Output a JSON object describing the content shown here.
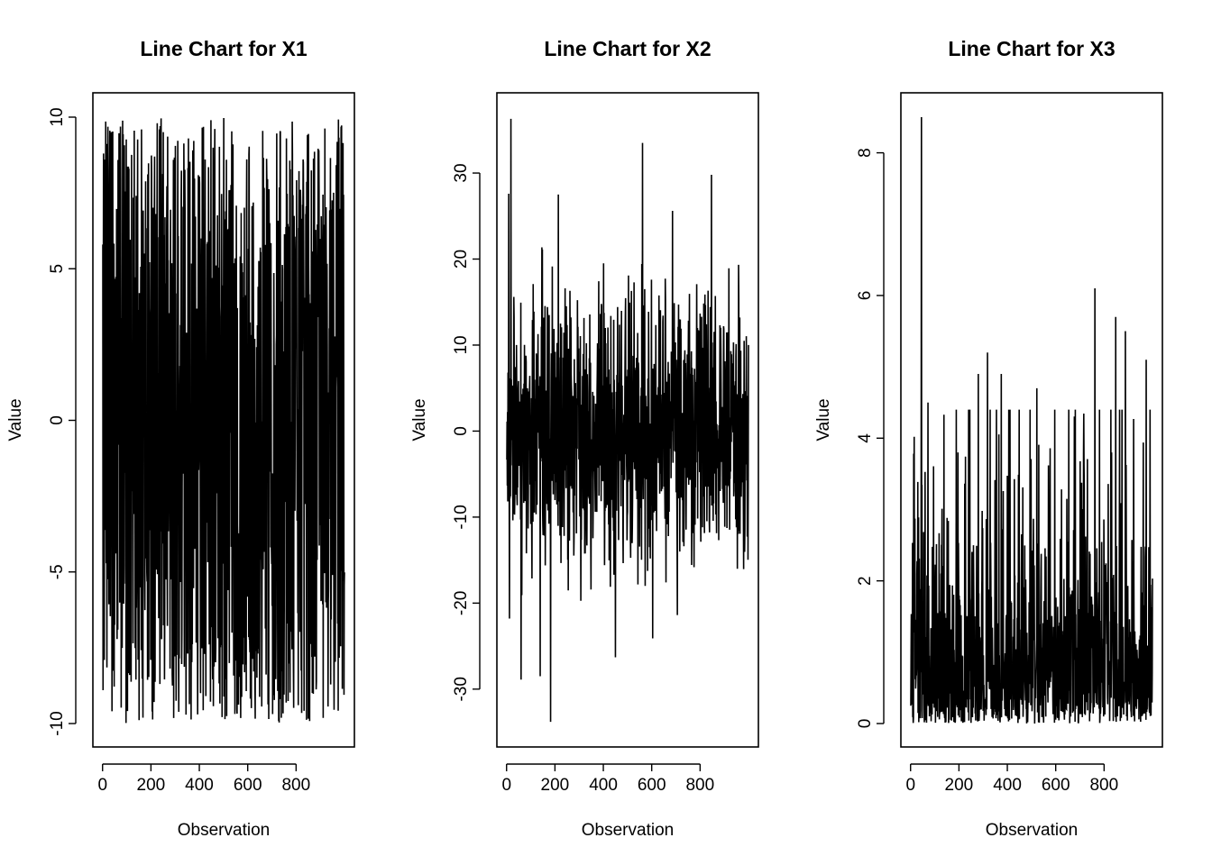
{
  "chart_data": [
    {
      "type": "line",
      "title": "Line Chart for X1",
      "xlabel": "Observation",
      "ylabel": "Value",
      "xlim": [
        1,
        1000
      ],
      "ylim": [
        -10,
        10
      ],
      "x_ticks": [
        0,
        200,
        400,
        600,
        800
      ],
      "y_ticks": [
        -10,
        -5,
        0,
        5,
        10
      ],
      "grid": false,
      "series": [
        {
          "n": 1000,
          "distribution": "uniform",
          "approx_range": [
            -9.98,
            9.97
          ],
          "first_values": [
            5.8,
            -8.9,
            3.2,
            8.8,
            -6.0,
            1.5,
            -7.9,
            4.4,
            8.6,
            -0.2
          ]
        }
      ]
    },
    {
      "type": "line",
      "title": "Line Chart for X2",
      "xlabel": "Observation",
      "ylabel": "Value",
      "xlim": [
        1,
        1000
      ],
      "ylim": [
        -34,
        36.5
      ],
      "x_ticks": [
        0,
        200,
        400,
        600,
        800
      ],
      "y_ticks": [
        -30,
        -20,
        -10,
        0,
        10,
        20,
        30
      ],
      "grid": false,
      "series": [
        {
          "n": 1000,
          "distribution": "normal",
          "mean": 0,
          "sd": 8,
          "peaks": [
            {
              "x": 18,
              "y": 36.3
            },
            {
              "x": 9,
              "y": 27.6
            },
            {
              "x": 214,
              "y": 27.5
            },
            {
              "x": 562,
              "y": 33.5
            },
            {
              "x": 847,
              "y": 29.8
            }
          ],
          "troughs": [
            {
              "x": 182,
              "y": -33.8
            },
            {
              "x": 12,
              "y": -21.8
            },
            {
              "x": 60,
              "y": -28.9
            },
            {
              "x": 139,
              "y": -28.5
            },
            {
              "x": 450,
              "y": -26.3
            },
            {
              "x": 604,
              "y": -24.1
            }
          ]
        }
      ]
    },
    {
      "type": "line",
      "title": "Line Chart for X3",
      "xlabel": "Observation",
      "ylabel": "Value",
      "xlim": [
        1,
        1000
      ],
      "ylim": [
        0,
        8.5
      ],
      "x_ticks": [
        0,
        200,
        400,
        600,
        800
      ],
      "y_ticks": [
        0,
        2,
        4,
        6,
        8
      ],
      "grid": false,
      "series": [
        {
          "n": 1000,
          "distribution": "exponential",
          "mean": 1,
          "peaks": [
            {
              "x": 45,
              "y": 8.5
            },
            {
              "x": 762,
              "y": 6.1
            },
            {
              "x": 848,
              "y": 5.7
            },
            {
              "x": 888,
              "y": 5.5
            },
            {
              "x": 318,
              "y": 5.2
            },
            {
              "x": 974,
              "y": 5.1
            },
            {
              "x": 280,
              "y": 4.9
            },
            {
              "x": 375,
              "y": 4.9
            },
            {
              "x": 522,
              "y": 4.7
            },
            {
              "x": 72,
              "y": 4.5
            }
          ]
        }
      ]
    }
  ]
}
